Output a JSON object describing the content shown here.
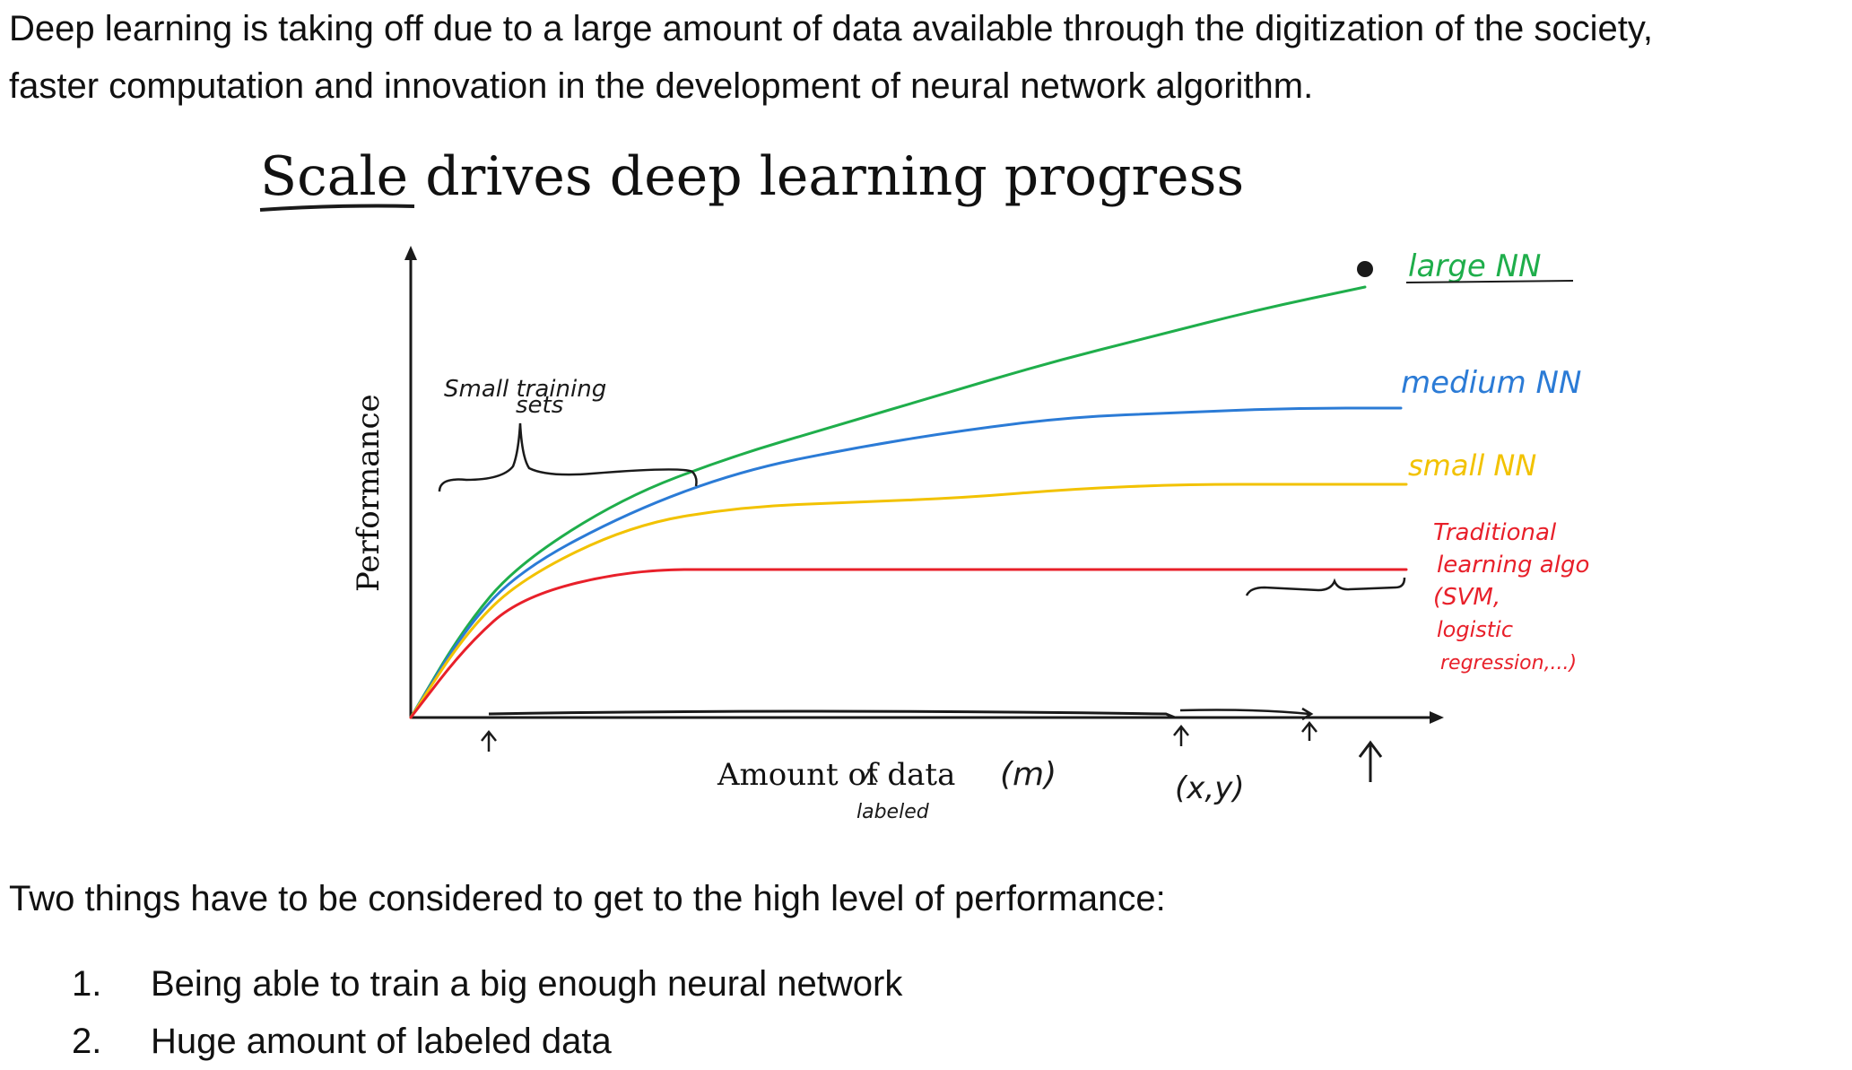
{
  "intro": {
    "line1": "Deep learning is taking off due to a large amount of data available through the digitization of the society,",
    "line2": "faster computation and innovation in the development of neural network algorithm."
  },
  "figure": {
    "title": "Scale drives deep learning progress",
    "small_sets_line1": "Small training",
    "small_sets_line2": "sets",
    "m_label": "(m)",
    "xy_label": "(x,y)",
    "labeled_label": "labeled",
    "traditional_lines": [
      "Traditional",
      "learning algo",
      "(SVM,",
      "logistic",
      "regression,...)"
    ],
    "colors": {
      "large": "#1fae4b",
      "medium": "#2b7bd6",
      "small": "#f2c200",
      "traditional": "#e8202a",
      "ink": "#1a1a1a"
    },
    "chart_data": {
      "type": "line",
      "title": "Scale drives deep learning progress",
      "xlabel": "Amount of data",
      "ylabel": "Performance",
      "ylim": [
        0,
        1
      ],
      "xlim": [
        0,
        1
      ],
      "legend": "right",
      "grid": false,
      "series": [
        {
          "name": "large NN",
          "x": [
            0,
            0.05,
            0.1,
            0.2,
            0.3,
            0.4,
            0.5,
            0.6,
            0.7,
            0.8,
            0.9
          ],
          "values": [
            0,
            0.2,
            0.34,
            0.49,
            0.58,
            0.65,
            0.72,
            0.79,
            0.85,
            0.91,
            0.96
          ]
        },
        {
          "name": "medium NN",
          "x": [
            0,
            0.05,
            0.1,
            0.2,
            0.3,
            0.4,
            0.5,
            0.6,
            0.7,
            0.8,
            0.9
          ],
          "values": [
            0,
            0.2,
            0.33,
            0.46,
            0.55,
            0.6,
            0.64,
            0.67,
            0.68,
            0.69,
            0.69
          ]
        },
        {
          "name": "small NN",
          "x": [
            0,
            0.05,
            0.1,
            0.2,
            0.3,
            0.4,
            0.5,
            0.6,
            0.7,
            0.8,
            0.9
          ],
          "values": [
            0,
            0.19,
            0.31,
            0.43,
            0.47,
            0.48,
            0.49,
            0.51,
            0.52,
            0.52,
            0.52
          ]
        },
        {
          "name": "Traditional learning algo",
          "x": [
            0,
            0.05,
            0.1,
            0.2,
            0.3,
            0.4,
            0.5,
            0.6,
            0.7,
            0.8,
            0.9
          ],
          "values": [
            0,
            0.16,
            0.27,
            0.33,
            0.33,
            0.33,
            0.33,
            0.33,
            0.33,
            0.33,
            0.33
          ]
        }
      ]
    }
  },
  "closing": "Two things have to be considered to get to the high level of performance:",
  "steps": [
    {
      "num": "1.",
      "text": "Being able to train a big enough neural network"
    },
    {
      "num": "2.",
      "text": "Huge amount of labeled data"
    }
  ]
}
